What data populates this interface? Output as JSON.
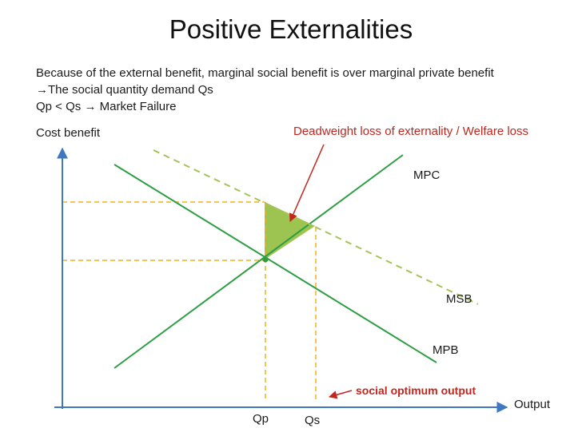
{
  "title": "Positive Externalities",
  "description": {
    "line1": "Because of the external benefit, marginal social benefit is over marginal private benefit",
    "line2": "→The social quantity demand Qs",
    "line3": "Qp < Qs → Market Failure"
  },
  "axes": {
    "y_label": "Cost benefit",
    "x_label": "Output"
  },
  "curves": {
    "mpc": "MPC",
    "msb": "MSB",
    "mpb": "MPB"
  },
  "quantities": {
    "qp": "Qp",
    "qs": "Qs"
  },
  "annotations": {
    "deadweight": "Deadweight loss of externality / Welfare loss",
    "social_optimum": "social optimum output"
  },
  "colors": {
    "curve_green": "#2e9e44",
    "msb_dashed": "#a6c35a",
    "guide_dashed": "#f2b21b",
    "shade": "#9dc450",
    "axis_blue": "#3f78c2",
    "annotation_red": "#c0271f"
  }
}
